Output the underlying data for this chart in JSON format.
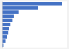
{
  "values": [
    100,
    60,
    28,
    20,
    17,
    14,
    12,
    10,
    8,
    6,
    2.5
  ],
  "bar_color": "#4472c4",
  "background_color": "#f2f2f2",
  "plot_background": "#ffffff",
  "xlim_max": 108,
  "bar_height": 0.72
}
